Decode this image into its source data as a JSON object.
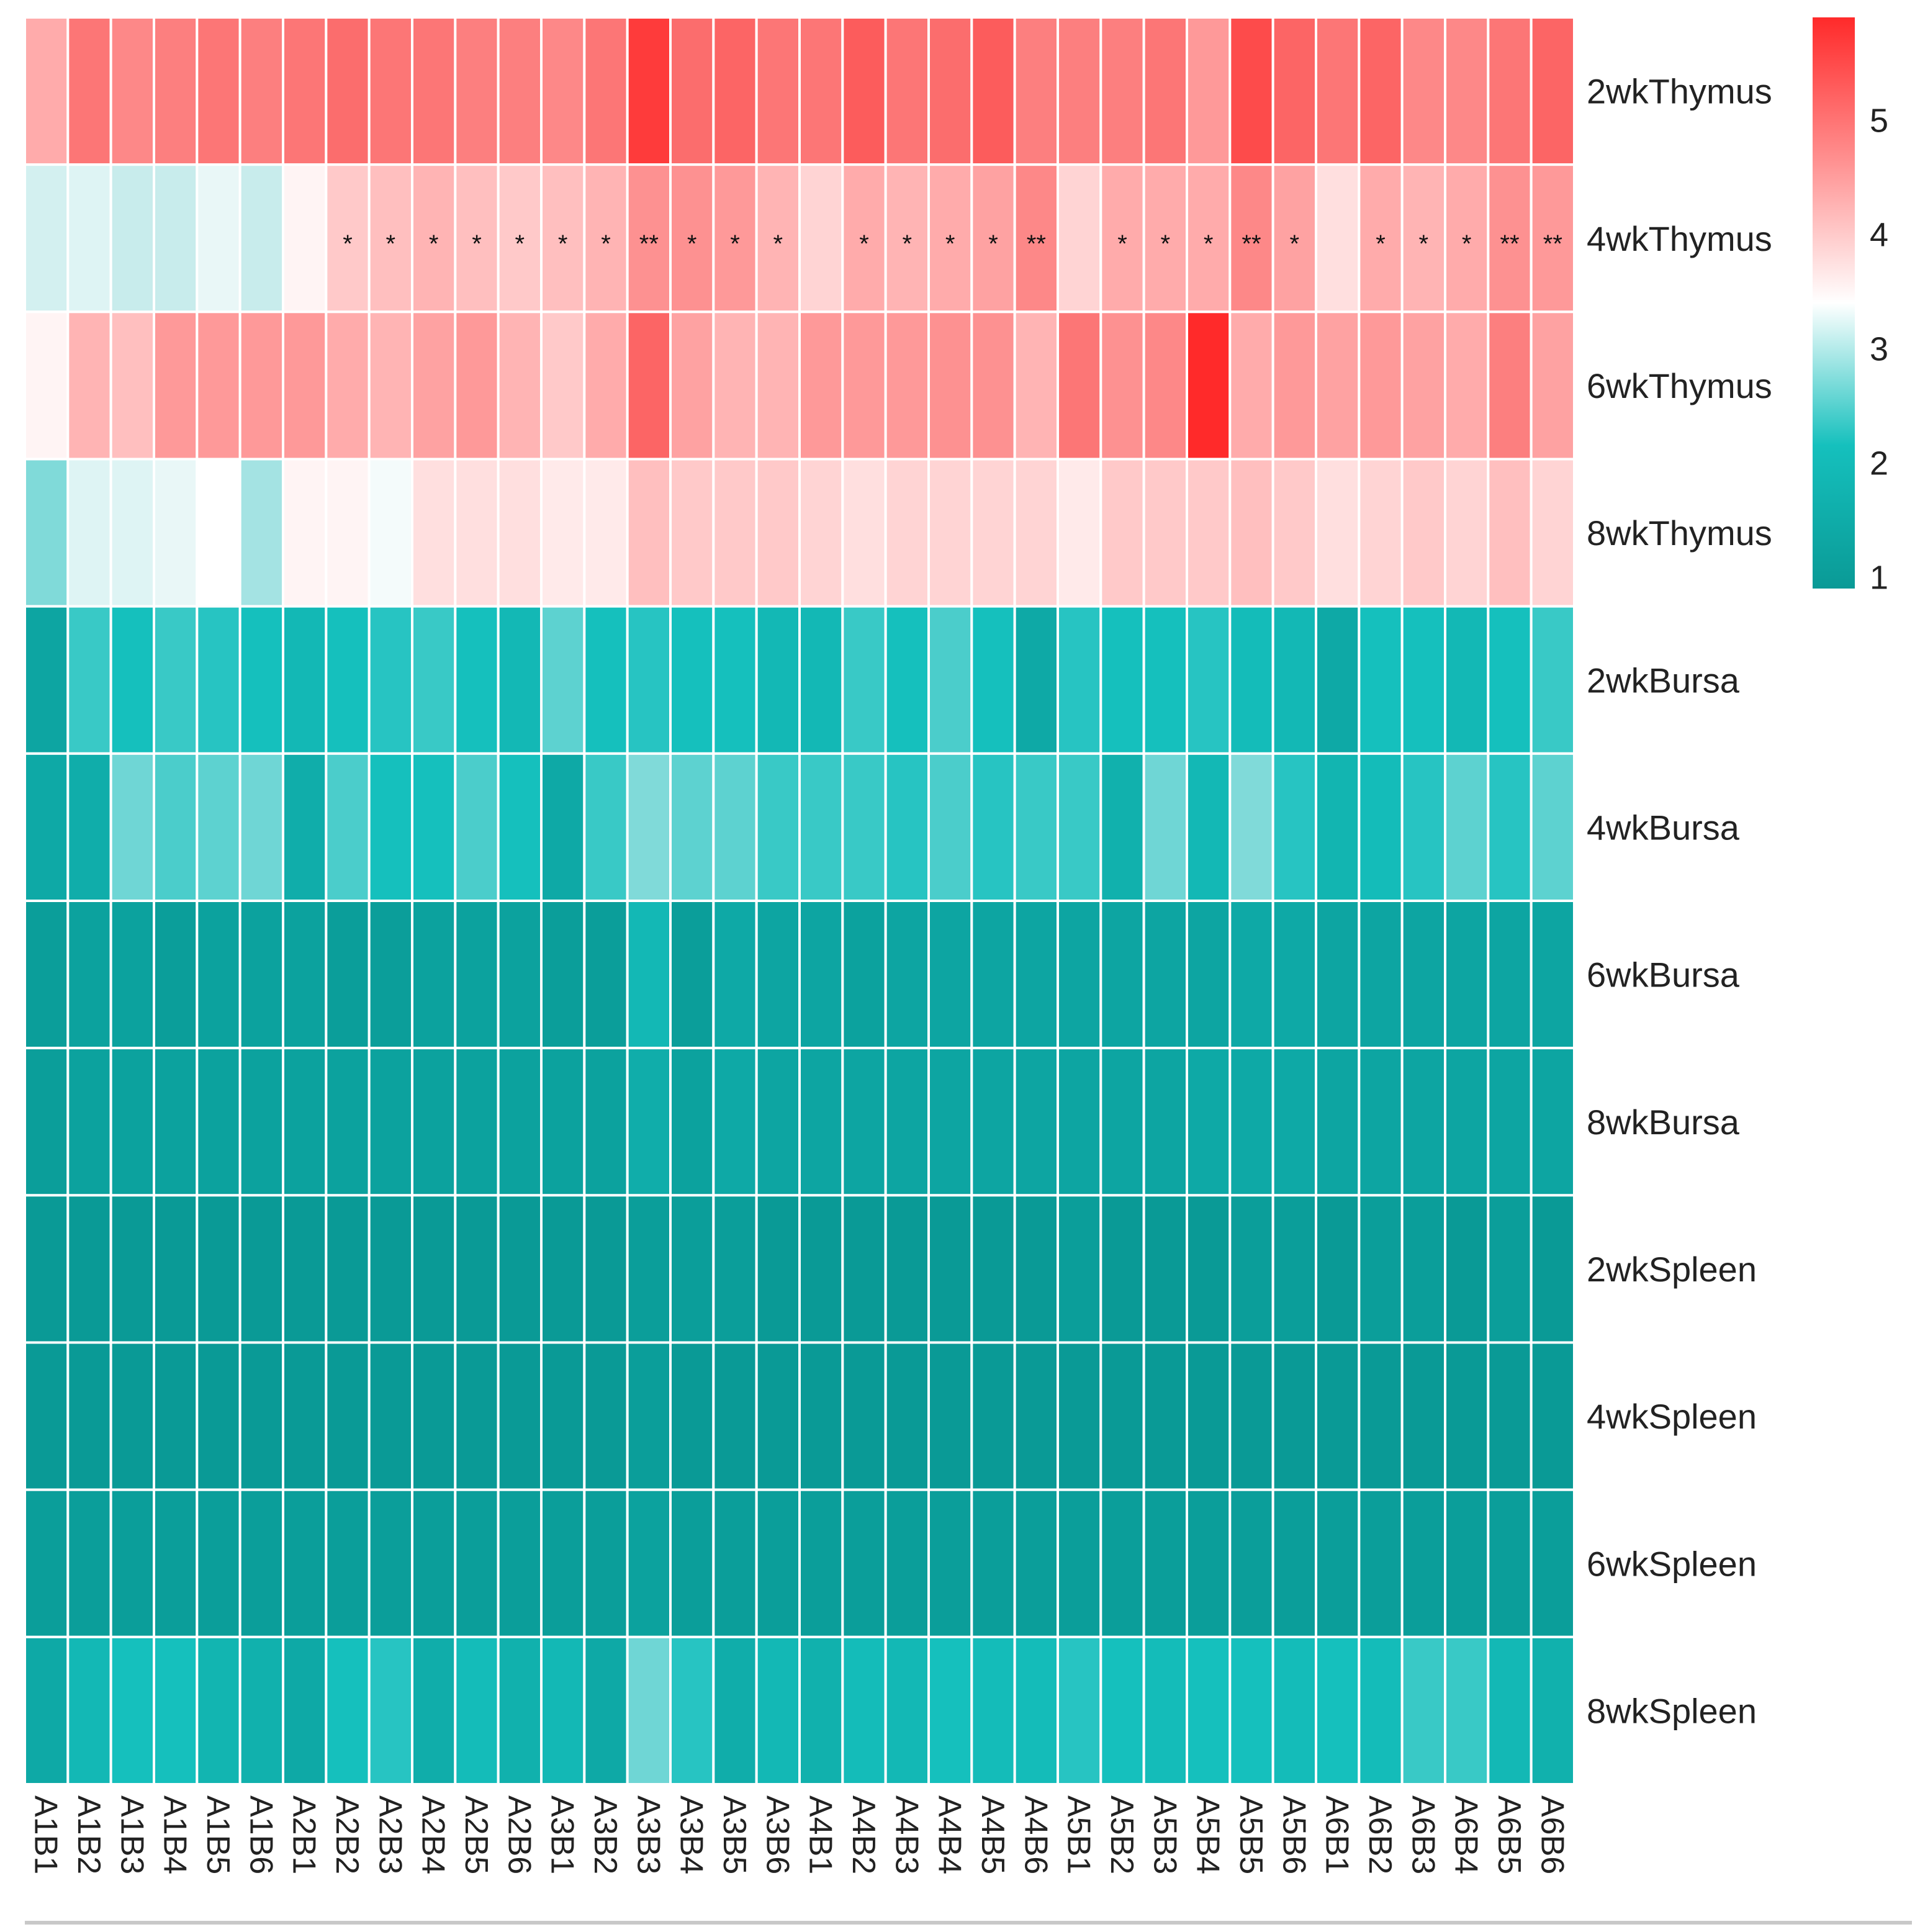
{
  "chart_data": {
    "type": "heatmap",
    "title": "",
    "rows": [
      "2wkThymus",
      "4wkThymus",
      "6wkThymus",
      "8wkThymus",
      "2wkBursa",
      "4wkBursa",
      "6wkBursa",
      "8wkBursa",
      "2wkSpleen",
      "4wkSpleen",
      "6wkSpleen",
      "8wkSpleen"
    ],
    "columns": [
      "A1B1",
      "A1B2",
      "A1B3",
      "A1B4",
      "A1B5",
      "A1B6",
      "A2B1",
      "A2B2",
      "A2B3",
      "A2B4",
      "A2B5",
      "A2B6",
      "A3B1",
      "A3B2",
      "A3B3",
      "A3B4",
      "A3B5",
      "A3B6",
      "A4B1",
      "A4B2",
      "A4B3",
      "A4B4",
      "A4B5",
      "A4B6",
      "A5B1",
      "A5B2",
      "A5B3",
      "A5B4",
      "A5B5",
      "A5B6",
      "A6B1",
      "A6B2",
      "A6B3",
      "A6B4",
      "A6B5",
      "A6B6"
    ],
    "values": [
      [
        4.3,
        4.9,
        4.7,
        4.8,
        4.9,
        4.8,
        4.9,
        5.0,
        4.9,
        4.9,
        4.8,
        4.8,
        4.7,
        4.9,
        5.6,
        5.0,
        5.1,
        4.9,
        4.9,
        5.2,
        4.9,
        5.0,
        5.2,
        4.8,
        4.8,
        4.8,
        4.9,
        4.5,
        5.4,
        5.1,
        4.9,
        5.1,
        4.7,
        4.7,
        4.9,
        5.1
      ],
      [
        3.1,
        3.2,
        3.0,
        3.0,
        3.3,
        3.0,
        3.6,
        4.0,
        4.1,
        4.2,
        4.1,
        4.0,
        4.1,
        4.2,
        4.6,
        4.6,
        4.5,
        4.2,
        3.9,
        4.3,
        4.2,
        4.3,
        4.4,
        4.7,
        3.9,
        4.3,
        4.3,
        4.3,
        4.7,
        4.4,
        3.8,
        4.3,
        4.2,
        4.3,
        4.6,
        4.5
      ],
      [
        3.6,
        4.2,
        4.1,
        4.5,
        4.5,
        4.5,
        4.5,
        4.3,
        4.2,
        4.4,
        4.5,
        4.2,
        4.0,
        4.3,
        5.1,
        4.4,
        4.2,
        4.2,
        4.5,
        4.5,
        4.5,
        4.6,
        4.6,
        4.2,
        4.9,
        4.6,
        4.7,
        5.8,
        4.3,
        4.5,
        4.4,
        4.5,
        4.4,
        4.3,
        4.8,
        4.4
      ],
      [
        2.6,
        3.2,
        3.2,
        3.3,
        3.5,
        2.8,
        3.6,
        3.6,
        3.4,
        3.8,
        3.8,
        3.8,
        3.7,
        3.7,
        4.1,
        4.0,
        4.0,
        4.0,
        3.9,
        3.8,
        3.9,
        3.9,
        3.9,
        3.9,
        3.7,
        4.0,
        4.0,
        4.0,
        4.1,
        4.0,
        3.8,
        3.9,
        4.0,
        3.9,
        4.1,
        3.9
      ],
      [
        1.3,
        2.2,
        2.0,
        2.2,
        2.1,
        2.0,
        1.8,
        2.0,
        2.1,
        2.2,
        2.0,
        1.8,
        2.4,
        2.0,
        2.1,
        2.0,
        2.0,
        1.8,
        1.8,
        2.2,
        2.0,
        2.3,
        2.0,
        1.4,
        2.1,
        2.0,
        2.0,
        2.1,
        1.9,
        1.8,
        1.4,
        2.0,
        2.0,
        1.8,
        2.0,
        2.2
      ],
      [
        1.4,
        1.5,
        2.5,
        2.3,
        2.4,
        2.5,
        1.5,
        2.3,
        2.0,
        2.0,
        2.3,
        2.0,
        1.4,
        2.2,
        2.6,
        2.4,
        2.4,
        2.2,
        2.2,
        2.2,
        2.1,
        2.3,
        2.1,
        2.2,
        2.2,
        1.6,
        2.5,
        1.8,
        2.6,
        2.1,
        1.7,
        1.9,
        2.1,
        2.4,
        2.1,
        2.4
      ],
      [
        1.1,
        1.2,
        1.2,
        1.1,
        1.2,
        1.2,
        1.2,
        1.1,
        1.1,
        1.2,
        1.2,
        1.2,
        1.1,
        1.1,
        1.8,
        1.1,
        1.4,
        1.3,
        1.3,
        1.2,
        1.3,
        1.3,
        1.3,
        1.3,
        1.3,
        1.3,
        1.3,
        1.3,
        1.4,
        1.4,
        1.3,
        1.3,
        1.3,
        1.3,
        1.3,
        1.3
      ],
      [
        1.1,
        1.2,
        1.2,
        1.2,
        1.2,
        1.2,
        1.2,
        1.2,
        1.2,
        1.2,
        1.2,
        1.2,
        1.2,
        1.2,
        1.5,
        1.2,
        1.4,
        1.3,
        1.3,
        1.3,
        1.3,
        1.3,
        1.3,
        1.3,
        1.3,
        1.3,
        1.3,
        1.4,
        1.4,
        1.4,
        1.3,
        1.3,
        1.3,
        1.3,
        1.3,
        1.3
      ],
      [
        1.0,
        1.0,
        1.0,
        1.0,
        1.0,
        1.0,
        1.0,
        1.0,
        1.0,
        1.0,
        1.0,
        1.0,
        1.0,
        1.0,
        1.1,
        1.1,
        1.1,
        1.0,
        1.0,
        1.0,
        1.0,
        1.0,
        1.0,
        1.0,
        1.1,
        1.0,
        1.0,
        1.0,
        1.1,
        1.1,
        1.0,
        1.1,
        1.1,
        1.0,
        1.1,
        1.0
      ],
      [
        1.0,
        1.0,
        1.0,
        1.0,
        1.0,
        1.0,
        1.0,
        1.0,
        1.0,
        1.0,
        1.0,
        1.0,
        1.0,
        1.0,
        1.1,
        1.0,
        1.0,
        1.0,
        1.0,
        1.0,
        1.0,
        1.0,
        1.0,
        1.0,
        1.0,
        1.0,
        1.0,
        1.0,
        1.0,
        1.0,
        1.0,
        1.0,
        1.0,
        1.0,
        1.0,
        1.0
      ],
      [
        1.1,
        1.1,
        1.1,
        1.1,
        1.1,
        1.1,
        1.1,
        1.1,
        1.1,
        1.1,
        1.1,
        1.1,
        1.1,
        1.1,
        1.2,
        1.1,
        1.1,
        1.1,
        1.1,
        1.1,
        1.1,
        1.1,
        1.1,
        1.1,
        1.1,
        1.1,
        1.1,
        1.1,
        1.1,
        1.1,
        1.1,
        1.1,
        1.1,
        1.1,
        1.1,
        1.1
      ],
      [
        1.4,
        1.8,
        2.0,
        2.0,
        1.7,
        1.6,
        1.4,
        2.0,
        2.1,
        1.5,
        1.9,
        1.6,
        1.8,
        1.4,
        2.5,
        2.1,
        1.5,
        1.8,
        1.6,
        1.9,
        1.8,
        2.0,
        1.9,
        1.9,
        2.1,
        2.0,
        1.9,
        2.0,
        2.0,
        1.9,
        2.0,
        1.9,
        2.2,
        2.2,
        1.8,
        1.6
      ]
    ],
    "significance": {
      "row": "4wkThymus",
      "marks": [
        "",
        "",
        "",
        "",
        "",
        "",
        "",
        "*",
        "*",
        "*",
        "*",
        "*",
        "*",
        "*",
        "**",
        "*",
        "*",
        "*",
        "",
        "*",
        "*",
        "*",
        "*",
        "**",
        "",
        "*",
        "*",
        "*",
        "**",
        "*",
        "",
        "*",
        "*",
        "*",
        "**",
        "**"
      ]
    },
    "colorbar": {
      "ticks": [
        5,
        4,
        3,
        2,
        1
      ],
      "range": [
        0.9,
        5.9
      ],
      "colors": {
        "low": "#0a9a96",
        "mid": "#ffffff",
        "high": "#ff2a2a"
      }
    },
    "xlabel": "",
    "ylabel": ""
  }
}
